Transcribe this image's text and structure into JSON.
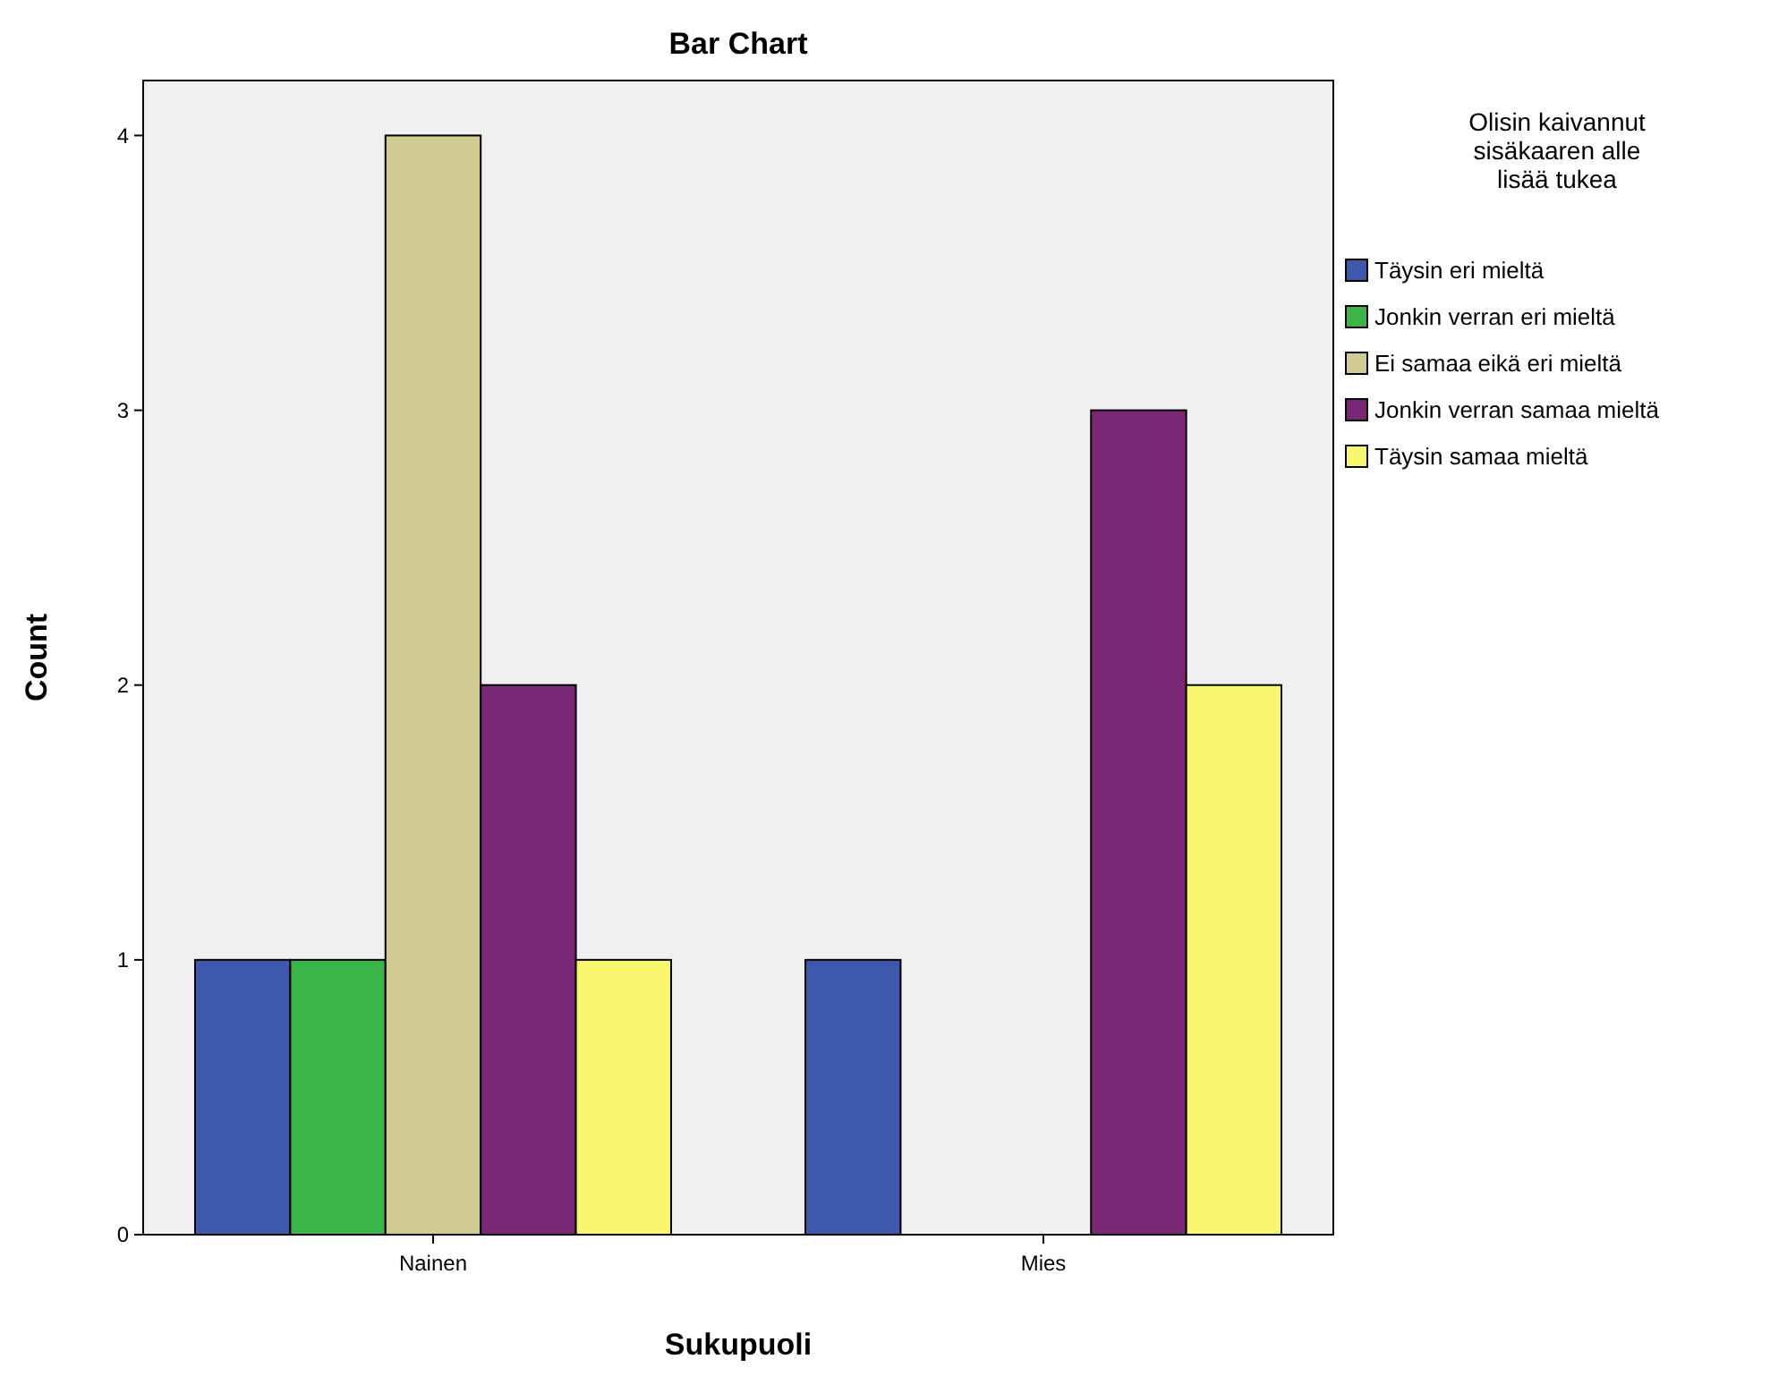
{
  "chart_data": {
    "type": "bar",
    "title": "Bar Chart",
    "xlabel": "Sukupuoli",
    "ylabel": "Count",
    "legend_title": "Olisin kaivannut sisäkaaren alle lisää tukea",
    "categories": [
      "Nainen",
      "Mies"
    ],
    "series": [
      {
        "name": "Täysin eri mieltä",
        "color": "#3e58ac",
        "values": [
          1,
          1
        ]
      },
      {
        "name": "Jonkin verran eri mieltä",
        "color": "#3bb54a",
        "values": [
          1,
          0
        ]
      },
      {
        "name": "Ei samaa eikä eri mieltä",
        "color": "#d2cc94",
        "values": [
          4,
          0
        ]
      },
      {
        "name": "Jonkin verran samaa mieltä",
        "color": "#7a2775",
        "values": [
          2,
          3
        ]
      },
      {
        "name": "Täysin samaa mieltä",
        "color": "#f8f66e",
        "values": [
          1,
          2
        ]
      }
    ],
    "ylim": [
      0,
      4.2
    ],
    "yticks": [
      0,
      1,
      2,
      3,
      4
    ],
    "grid": false,
    "legend": "right"
  }
}
